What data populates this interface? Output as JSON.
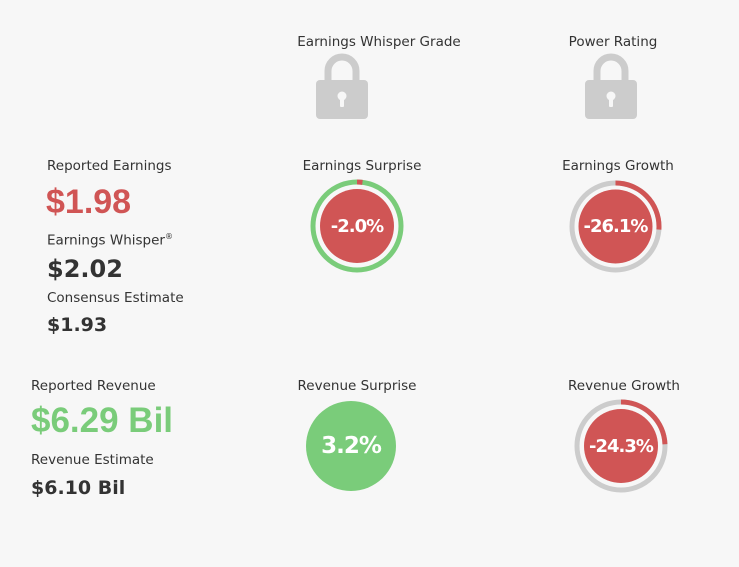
{
  "header": {
    "whisper_grade_label": "Earnings Whisper Grade",
    "power_rating_label": "Power Rating"
  },
  "earnings": {
    "reported_label": "Reported Earnings",
    "reported_value": "$1.98",
    "whisper_label": "Earnings Whisper",
    "whisper_mark": "®",
    "whisper_value": "$2.02",
    "consensus_label": "Consensus Estimate",
    "consensus_value": "$1.93",
    "surprise_label": "Earnings Surprise",
    "surprise_value": "-2.0%",
    "surprise_ring_fraction": 0.02,
    "growth_label": "Earnings Growth",
    "growth_value": "-26.1%",
    "growth_ring_fraction": 0.261
  },
  "revenue": {
    "reported_label": "Reported Revenue",
    "reported_value": "$6.29 Bil",
    "estimate_label": "Revenue Estimate",
    "estimate_value": "$6.10 Bil",
    "surprise_label": "Revenue Surprise",
    "surprise_value": "3.2%",
    "growth_label": "Revenue Growth",
    "growth_value": "-24.3%",
    "growth_ring_fraction": 0.243
  },
  "icons": {
    "whisper_grade": "lock-icon",
    "power_rating": "lock-icon"
  },
  "colors": {
    "negative": "#d05555",
    "positive": "#7acc7a",
    "ring_track": "#cccccc",
    "lock": "#cccccc"
  }
}
